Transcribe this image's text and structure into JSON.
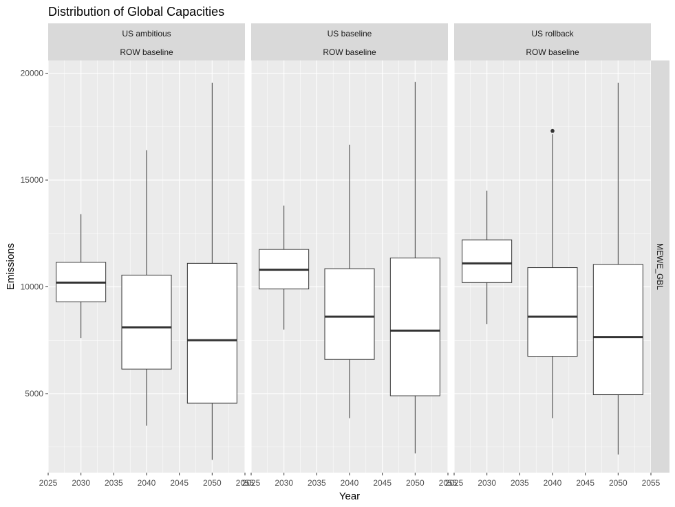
{
  "chart_data": {
    "type": "boxplot",
    "title": "Distribution of Global Capacities",
    "xlabel": "Year",
    "ylabel": "Emissions",
    "xlim": [
      2025,
      2055
    ],
    "ylim": [
      1300,
      20600
    ],
    "x_ticks": [
      2025,
      2030,
      2035,
      2040,
      2045,
      2050,
      2055
    ],
    "y_ticks": [
      5000,
      10000,
      15000,
      20000
    ],
    "grid": true,
    "row_strip": "MEWE_GBL",
    "panels": [
      {
        "strip_top": "US ambitious",
        "strip_bottom": "ROW baseline",
        "boxes": [
          {
            "x": 2030,
            "lower_whisker": 7600,
            "q1": 9300,
            "median": 10200,
            "q3": 11150,
            "upper_whisker": 13400,
            "outliers": []
          },
          {
            "x": 2040,
            "lower_whisker": 3500,
            "q1": 6150,
            "median": 8100,
            "q3": 10550,
            "upper_whisker": 16400,
            "outliers": []
          },
          {
            "x": 2050,
            "lower_whisker": 1900,
            "q1": 4550,
            "median": 7500,
            "q3": 11100,
            "upper_whisker": 19550,
            "outliers": []
          }
        ]
      },
      {
        "strip_top": "US baseline",
        "strip_bottom": "ROW baseline",
        "boxes": [
          {
            "x": 2030,
            "lower_whisker": 8000,
            "q1": 9900,
            "median": 10800,
            "q3": 11750,
            "upper_whisker": 13800,
            "outliers": []
          },
          {
            "x": 2040,
            "lower_whisker": 3850,
            "q1": 6600,
            "median": 8600,
            "q3": 10850,
            "upper_whisker": 16650,
            "outliers": []
          },
          {
            "x": 2050,
            "lower_whisker": 2200,
            "q1": 4900,
            "median": 7950,
            "q3": 11350,
            "upper_whisker": 19600,
            "outliers": []
          }
        ]
      },
      {
        "strip_top": "US rollback",
        "strip_bottom": "ROW baseline",
        "boxes": [
          {
            "x": 2030,
            "lower_whisker": 8250,
            "q1": 10200,
            "median": 11100,
            "q3": 12200,
            "upper_whisker": 14500,
            "outliers": []
          },
          {
            "x": 2040,
            "lower_whisker": 3850,
            "q1": 6750,
            "median": 8600,
            "q3": 10900,
            "upper_whisker": 17150,
            "outliers": [
              17300
            ]
          },
          {
            "x": 2050,
            "lower_whisker": 2150,
            "q1": 4950,
            "median": 7650,
            "q3": 11050,
            "upper_whisker": 19550,
            "outliers": []
          }
        ]
      }
    ]
  },
  "colors": {
    "panel_background": "#ebebeb",
    "grid": "#ffffff",
    "strip_background": "#d9d9d9",
    "box_fill": "#ffffff",
    "box_outline": "#333333"
  }
}
